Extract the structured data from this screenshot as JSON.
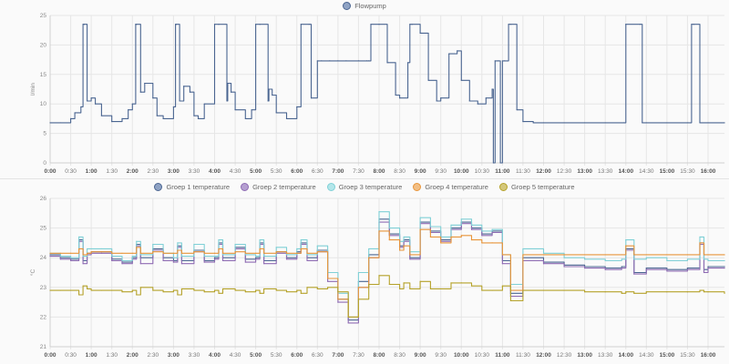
{
  "chart_data": [
    {
      "type": "line",
      "title": "",
      "legend": [
        "Flowpump"
      ],
      "legend_position": "top-center",
      "ylabel": "l/min",
      "xlabel": "",
      "ylim": [
        0,
        25
      ],
      "yticks": [
        "0",
        "5",
        "10",
        "15",
        "20",
        "25"
      ],
      "xticks": [
        "0:00",
        "0:30",
        "1:00",
        "1:30",
        "2:00",
        "2:30",
        "3:00",
        "3:30",
        "4:00",
        "4:30",
        "5:00",
        "5:30",
        "6:00",
        "6:30",
        "7:00",
        "7:30",
        "8:00",
        "8:30",
        "9:00",
        "9:30",
        "10:00",
        "10:30",
        "11:00",
        "11:30",
        "12:00",
        "12:30",
        "13:00",
        "13:30",
        "14:00",
        "14:30",
        "15:00",
        "15:30",
        "16:00"
      ],
      "grid": true,
      "series": [
        {
          "name": "Flowpump",
          "color": "#4a6591",
          "x_hours": [
            0,
            0.25,
            0.5,
            0.6,
            0.75,
            0.8,
            0.83,
            0.9,
            1.0,
            1.1,
            1.25,
            1.5,
            1.75,
            1.9,
            2.0,
            2.08,
            2.1,
            2.2,
            2.3,
            2.5,
            2.6,
            2.75,
            3.0,
            3.05,
            3.07,
            3.15,
            3.25,
            3.4,
            3.5,
            3.6,
            3.75,
            4.0,
            4.1,
            4.3,
            4.32,
            4.4,
            4.5,
            4.75,
            4.9,
            5.0,
            5.1,
            5.3,
            5.32,
            5.4,
            5.5,
            5.75,
            6.0,
            6.1,
            6.3,
            6.35,
            6.5,
            6.6,
            6.8,
            7.0,
            7.2,
            7.5,
            7.7,
            7.75,
            7.8,
            8.0,
            8.2,
            8.4,
            8.5,
            8.7,
            8.75,
            8.8,
            9.0,
            9.2,
            9.4,
            9.5,
            9.7,
            9.9,
            10.0,
            10.2,
            10.4,
            10.6,
            10.75,
            10.78,
            10.82,
            10.9,
            10.95,
            11.0,
            11.05,
            11.15,
            11.2,
            11.35,
            11.5,
            11.75,
            12.0,
            12.5,
            13.0,
            13.5,
            13.95,
            14.0,
            14.35,
            14.4,
            14.5,
            15.0,
            15.5,
            15.6,
            15.65,
            15.8,
            16.0,
            16.4
          ],
          "values": [
            6.8,
            6.8,
            7.5,
            8.5,
            9.5,
            23.5,
            23.5,
            10.5,
            11,
            10,
            8,
            7,
            7.5,
            9,
            10,
            23.5,
            23.5,
            12,
            13.5,
            11,
            8,
            7.5,
            9.5,
            23.5,
            23.5,
            10.5,
            13,
            12,
            8,
            7.5,
            10,
            23.5,
            23.5,
            10.5,
            13.5,
            12,
            9,
            7.5,
            9,
            23.5,
            23.5,
            10.5,
            12.5,
            11.5,
            8.5,
            7.5,
            9.5,
            23.5,
            23.5,
            11,
            17.3,
            17.3,
            17.3,
            17.3,
            17.3,
            17.3,
            17.3,
            17.3,
            23.5,
            23.5,
            17,
            11.5,
            11,
            17,
            23.5,
            23.5,
            22,
            14,
            10.5,
            11,
            18.5,
            19,
            14,
            10.5,
            10,
            11,
            12.5,
            0,
            17.3,
            17.3,
            0,
            17.3,
            17.3,
            23.5,
            23.5,
            9,
            7,
            6.8,
            6.8,
            6.8,
            6.8,
            6.8,
            6.8,
            23.5,
            23.5,
            6.8,
            6.8,
            6.8,
            6.8,
            23.5,
            23.5,
            6.8,
            6.8,
            6.8
          ]
        }
      ]
    },
    {
      "type": "line",
      "title": "",
      "legend": [
        "Groep 1 temperature",
        "Groep 2 temperature",
        "Groep 3 temperature",
        "Groep 4 temperature",
        "Groep 5 temperature"
      ],
      "legend_position": "top-center",
      "ylabel": "°C",
      "xlabel": "",
      "ylim": [
        21,
        26
      ],
      "yticks": [
        "21",
        "22",
        "23",
        "24",
        "25",
        "26"
      ],
      "xticks": [
        "0:00",
        "0:30",
        "1:00",
        "1:30",
        "2:00",
        "2:30",
        "3:00",
        "3:30",
        "4:00",
        "4:30",
        "5:00",
        "5:30",
        "6:00",
        "6:30",
        "7:00",
        "7:30",
        "8:00",
        "8:30",
        "9:00",
        "9:30",
        "10:00",
        "10:30",
        "11:00",
        "11:30",
        "12:00",
        "12:30",
        "13:00",
        "13:30",
        "14:00",
        "14:30",
        "15:00",
        "15:30",
        "16:00"
      ],
      "grid": true,
      "x_hours": [
        0,
        0.25,
        0.5,
        0.7,
        0.8,
        0.9,
        1.0,
        1.25,
        1.5,
        1.75,
        2.0,
        2.1,
        2.2,
        2.5,
        2.75,
        3.0,
        3.1,
        3.2,
        3.5,
        3.75,
        4.0,
        4.1,
        4.2,
        4.5,
        4.75,
        5.0,
        5.1,
        5.2,
        5.5,
        5.75,
        6.0,
        6.1,
        6.25,
        6.5,
        6.75,
        7.0,
        7.25,
        7.5,
        7.75,
        8.0,
        8.25,
        8.5,
        8.6,
        8.75,
        9.0,
        9.25,
        9.5,
        9.75,
        10.0,
        10.25,
        10.5,
        10.75,
        11.0,
        11.2,
        11.5,
        12.0,
        12.5,
        13.0,
        13.5,
        13.9,
        14.0,
        14.2,
        14.5,
        15.0,
        15.5,
        15.8,
        15.9,
        16.0,
        16.4
      ],
      "series": [
        {
          "name": "Groep 1 temperature",
          "color": "#4a6591",
          "values": [
            24.1,
            24.0,
            23.95,
            24.6,
            23.9,
            24.15,
            24.2,
            24.2,
            23.95,
            23.85,
            24.0,
            24.45,
            24.0,
            24.3,
            24.0,
            23.9,
            24.4,
            23.9,
            24.25,
            23.9,
            24.0,
            24.5,
            24.0,
            24.35,
            23.95,
            24.0,
            24.5,
            23.9,
            24.2,
            24.0,
            24.2,
            24.5,
            24.0,
            24.25,
            23.3,
            22.6,
            21.9,
            23.2,
            24.1,
            25.3,
            24.8,
            24.4,
            24.6,
            24.0,
            25.2,
            24.9,
            24.6,
            25.0,
            25.2,
            25.0,
            24.8,
            24.9,
            23.9,
            22.8,
            24.0,
            23.85,
            23.75,
            23.7,
            23.65,
            23.7,
            24.3,
            23.5,
            23.65,
            23.6,
            23.65,
            24.5,
            23.6,
            23.7,
            23.7
          ]
        },
        {
          "name": "Groep 2 temperature",
          "color": "#8e6bb3",
          "values": [
            24.05,
            23.95,
            23.9,
            24.55,
            23.8,
            24.1,
            24.15,
            24.15,
            23.9,
            23.8,
            23.95,
            24.4,
            23.8,
            24.25,
            23.9,
            23.85,
            24.35,
            23.8,
            24.2,
            23.85,
            23.95,
            24.45,
            23.9,
            24.3,
            23.85,
            23.95,
            24.45,
            23.8,
            24.15,
            23.95,
            24.15,
            24.45,
            23.9,
            24.2,
            23.2,
            22.5,
            21.8,
            23.0,
            24.0,
            25.2,
            24.75,
            24.35,
            24.55,
            23.95,
            25.15,
            24.85,
            24.55,
            24.95,
            25.15,
            24.95,
            24.75,
            24.85,
            23.8,
            22.7,
            23.9,
            23.8,
            23.7,
            23.65,
            23.6,
            23.65,
            24.25,
            23.45,
            23.6,
            23.55,
            23.6,
            24.45,
            23.5,
            23.65,
            23.65
          ]
        },
        {
          "name": "Groep 3 temperature",
          "color": "#7fd0d6",
          "values": [
            24.15,
            24.05,
            24.0,
            24.7,
            24.05,
            24.3,
            24.3,
            24.3,
            24.05,
            23.9,
            24.05,
            24.55,
            24.1,
            24.45,
            24.15,
            24.0,
            24.5,
            24.05,
            24.45,
            24.05,
            24.05,
            24.6,
            24.1,
            24.45,
            24.1,
            24.05,
            24.6,
            24.05,
            24.35,
            24.1,
            24.3,
            24.6,
            24.1,
            24.4,
            23.5,
            22.8,
            22.0,
            23.5,
            24.3,
            25.55,
            25.0,
            24.55,
            24.7,
            24.2,
            25.35,
            25.05,
            24.7,
            25.1,
            25.3,
            25.1,
            24.9,
            24.95,
            24.1,
            23.1,
            24.3,
            24.15,
            24.0,
            23.95,
            23.9,
            23.95,
            24.6,
            23.95,
            24.0,
            23.9,
            23.95,
            24.7,
            23.95,
            23.9,
            23.9
          ]
        },
        {
          "name": "Groep 4 temperature",
          "color": "#e8953a",
          "values": [
            24.15,
            24.15,
            24.15,
            24.3,
            24.1,
            24.15,
            24.2,
            24.2,
            24.15,
            24.15,
            24.15,
            24.35,
            24.15,
            24.2,
            24.15,
            24.15,
            24.25,
            24.15,
            24.2,
            24.15,
            24.15,
            24.3,
            24.15,
            24.2,
            24.15,
            24.15,
            24.3,
            24.15,
            24.2,
            24.15,
            24.15,
            24.3,
            24.15,
            24.2,
            23.3,
            22.6,
            22.0,
            23.0,
            24.0,
            24.9,
            24.6,
            24.25,
            24.4,
            24.1,
            24.95,
            24.7,
            24.5,
            24.7,
            24.75,
            24.6,
            24.5,
            24.5,
            24.1,
            22.9,
            24.1,
            24.1,
            24.1,
            24.1,
            24.1,
            24.1,
            24.4,
            24.1,
            24.1,
            24.1,
            24.1,
            24.5,
            24.1,
            24.1,
            24.1
          ]
        },
        {
          "name": "Groep 5 temperature",
          "color": "#b5a22a",
          "values": [
            22.9,
            22.9,
            22.9,
            22.75,
            23.05,
            22.95,
            22.9,
            22.9,
            22.9,
            22.85,
            22.9,
            22.75,
            23.0,
            22.9,
            22.85,
            22.9,
            22.75,
            22.95,
            22.9,
            22.85,
            22.9,
            22.8,
            22.95,
            22.9,
            22.85,
            22.9,
            22.8,
            22.95,
            22.9,
            22.85,
            22.9,
            22.8,
            23.0,
            22.95,
            23.0,
            22.85,
            22.0,
            22.6,
            23.1,
            23.4,
            23.1,
            22.95,
            23.15,
            22.95,
            23.2,
            22.95,
            22.95,
            23.15,
            23.15,
            23.05,
            22.9,
            22.9,
            23.05,
            22.55,
            22.9,
            22.9,
            22.9,
            22.85,
            22.85,
            22.8,
            22.85,
            22.8,
            22.85,
            22.85,
            22.85,
            22.9,
            22.85,
            22.85,
            22.8
          ]
        }
      ]
    }
  ]
}
